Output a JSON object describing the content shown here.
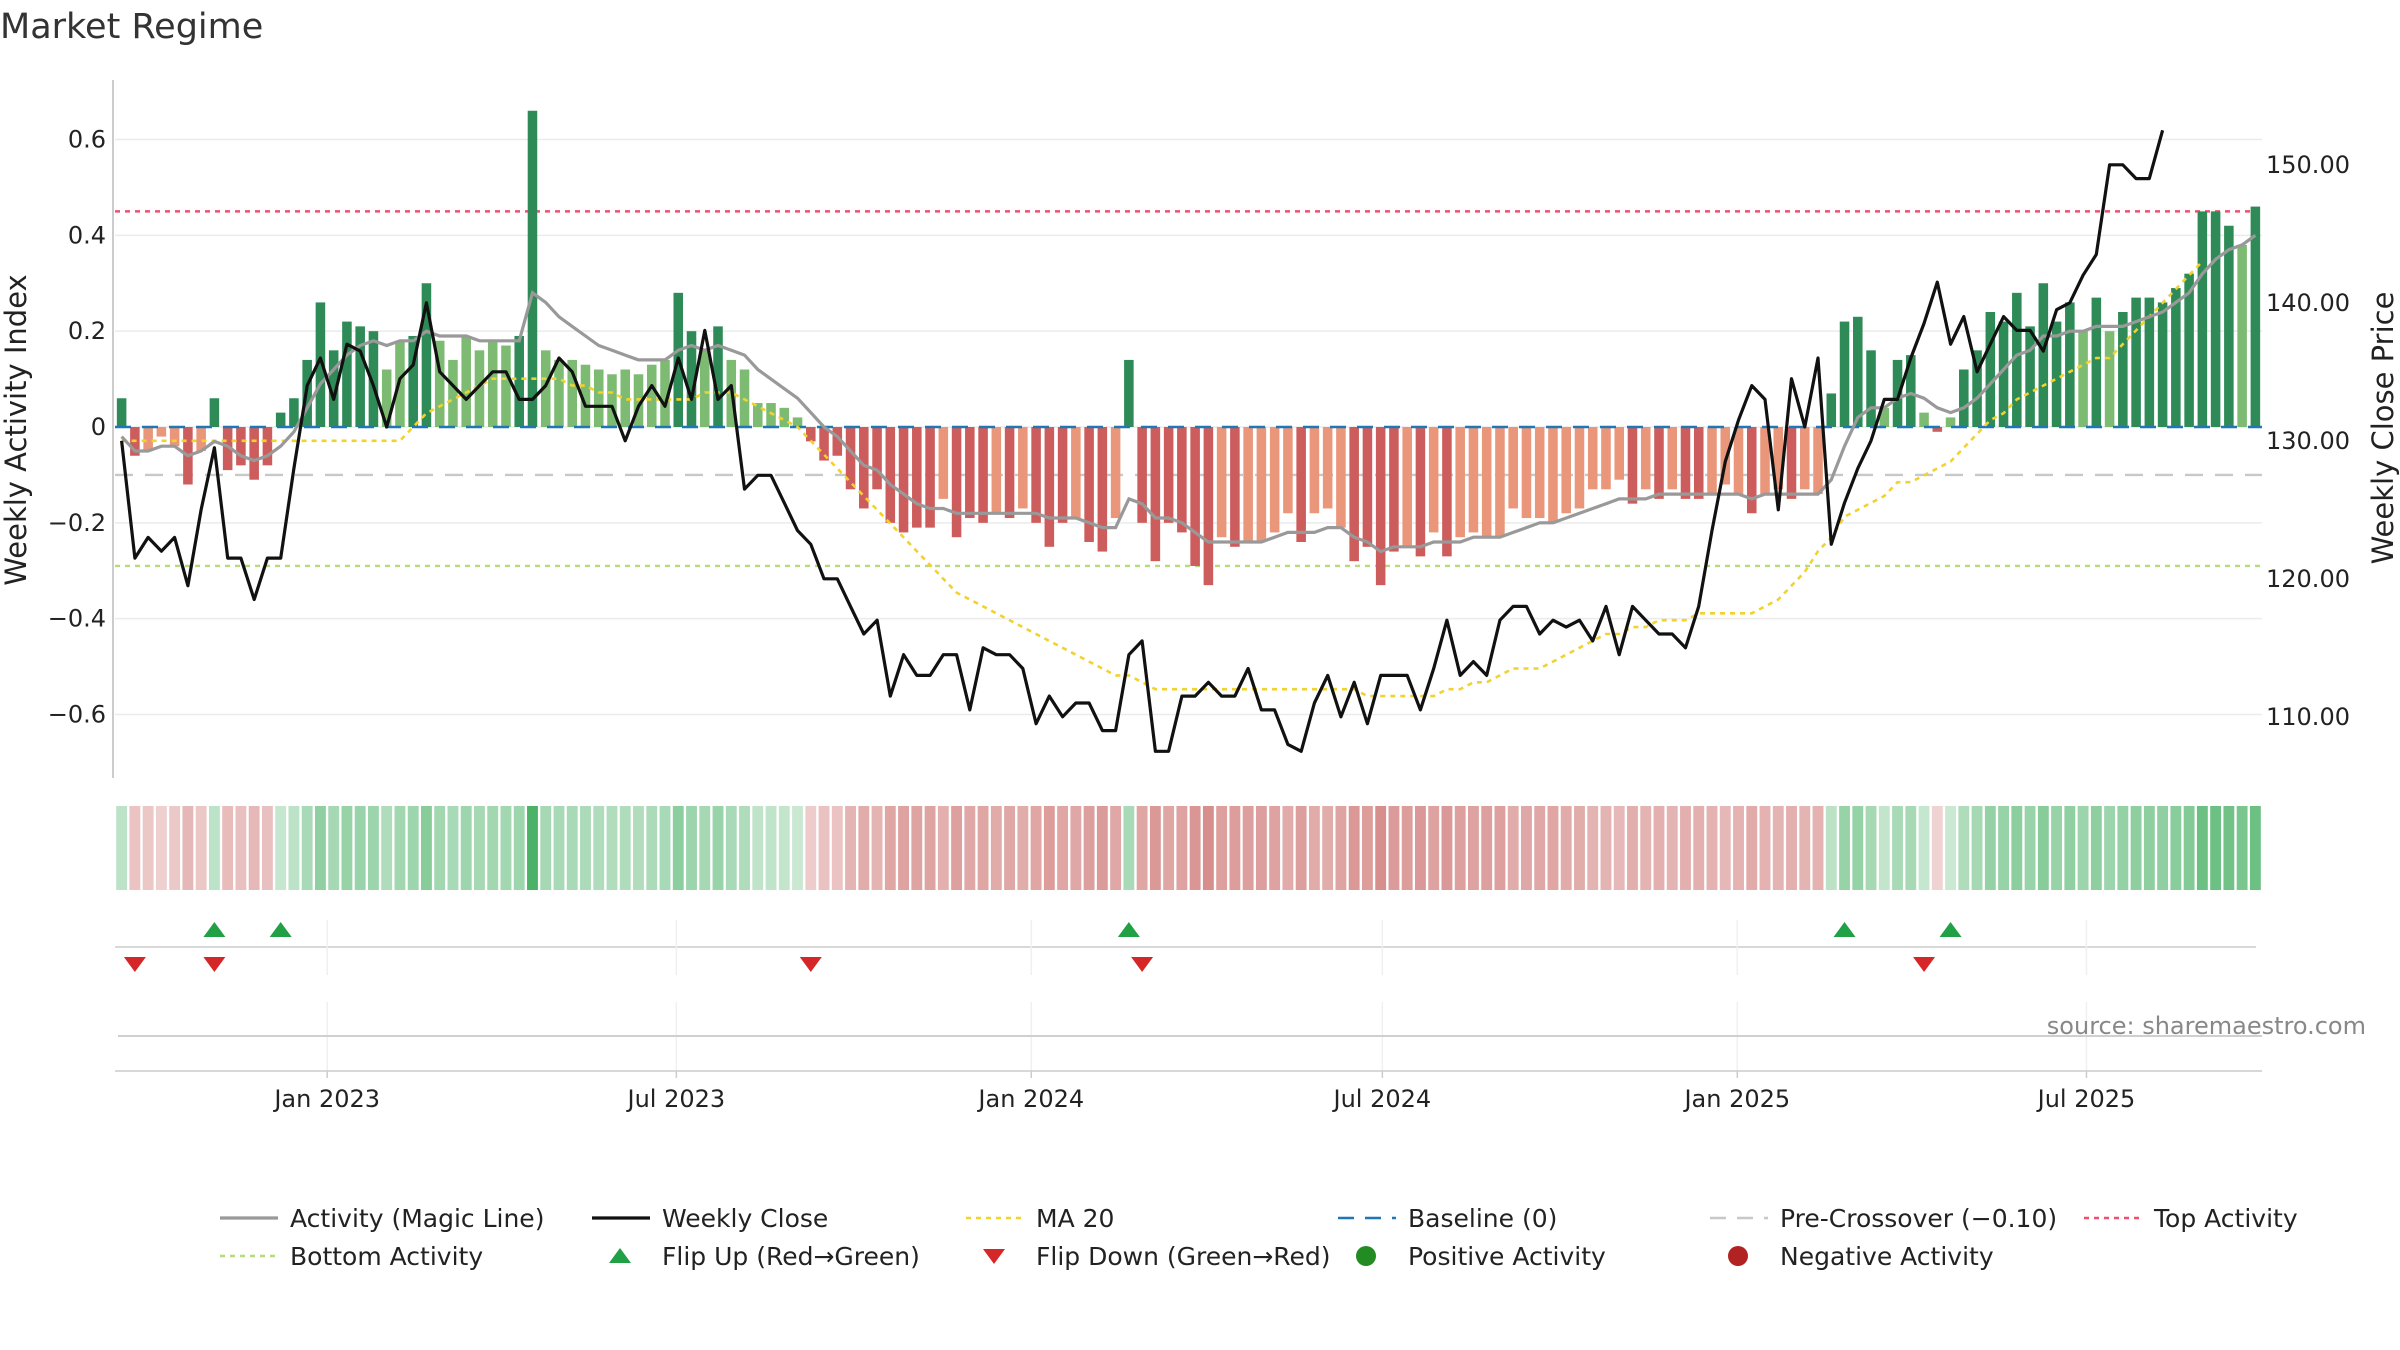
{
  "chart_data": {
    "type": "bar",
    "title": "Market Regime",
    "source": "source: sharemaestro.com",
    "y_left": {
      "label": "Weekly Activity Index",
      "ticks": [
        0.6,
        0.4,
        0.2,
        0,
        -0.2,
        -0.4,
        -0.6
      ],
      "tick_labels": [
        "0.6",
        "0.4",
        "0.2",
        "0",
        "−0.2",
        "−0.4",
        "−0.6"
      ],
      "range": [
        -0.72,
        0.72
      ]
    },
    "y_right": {
      "label": "Weekly Close Price",
      "ticks": [
        150,
        140,
        130,
        120,
        110
      ],
      "tick_labels": [
        "150.00",
        "140.00",
        "130.00",
        "120.00",
        "110.00"
      ],
      "range": [
        106,
        156
      ]
    },
    "x_axis": {
      "start_date": "2022-09-13",
      "end_date": "2025-09-30",
      "ticks": [
        {
          "date": "2023-01-01",
          "label": "Jan 2023"
        },
        {
          "date": "2023-07-01",
          "label": "Jul 2023"
        },
        {
          "date": "2024-01-01",
          "label": "Jan 2024"
        },
        {
          "date": "2024-07-01",
          "label": "Jul 2024"
        },
        {
          "date": "2025-01-01",
          "label": "Jan 2025"
        },
        {
          "date": "2025-07-01",
          "label": "Jul 2025"
        }
      ]
    },
    "thresholds": {
      "top": 0.45,
      "bottom": -0.29,
      "pre_crossover": -0.1,
      "baseline": 0
    },
    "activity": [
      0.06,
      -0.06,
      -0.05,
      -0.02,
      -0.04,
      -0.12,
      -0.05,
      0.06,
      -0.09,
      -0.08,
      -0.11,
      -0.08,
      0.03,
      0.06,
      0.14,
      0.26,
      0.16,
      0.22,
      0.21,
      0.2,
      0.12,
      0.18,
      0.19,
      0.3,
      0.18,
      0.14,
      0.19,
      0.16,
      0.18,
      0.17,
      0.19,
      0.66,
      0.16,
      0.14,
      0.14,
      0.13,
      0.12,
      0.11,
      0.12,
      0.11,
      0.13,
      0.14,
      0.28,
      0.2,
      0.16,
      0.21,
      0.14,
      0.12,
      0.05,
      0.05,
      0.04,
      0.02,
      -0.03,
      -0.07,
      -0.06,
      -0.13,
      -0.17,
      -0.13,
      -0.2,
      -0.22,
      -0.21,
      -0.21,
      -0.15,
      -0.23,
      -0.19,
      -0.2,
      -0.18,
      -0.19,
      -0.17,
      -0.2,
      -0.25,
      -0.2,
      -0.19,
      -0.24,
      -0.26,
      -0.19,
      0.14,
      -0.2,
      -0.28,
      -0.2,
      -0.22,
      -0.29,
      -0.33,
      -0.23,
      -0.25,
      -0.24,
      -0.24,
      -0.22,
      -0.18,
      -0.24,
      -0.18,
      -0.17,
      -0.21,
      -0.28,
      -0.25,
      -0.33,
      -0.26,
      -0.25,
      -0.27,
      -0.22,
      -0.27,
      -0.23,
      -0.22,
      -0.23,
      -0.23,
      -0.17,
      -0.19,
      -0.19,
      -0.2,
      -0.18,
      -0.17,
      -0.13,
      -0.13,
      -0.11,
      -0.16,
      -0.13,
      -0.15,
      -0.13,
      -0.15,
      -0.15,
      -0.14,
      -0.12,
      -0.14,
      -0.18,
      -0.14,
      -0.13,
      -0.15,
      -0.13,
      -0.14,
      0.07,
      0.22,
      0.23,
      0.16,
      0.04,
      0.14,
      0.15,
      0.03,
      -0.01,
      0.02,
      0.12,
      0.16,
      0.24,
      0.22,
      0.28,
      0.21,
      0.3,
      0.22,
      0.26,
      0.2,
      0.27,
      0.2,
      0.24,
      0.27,
      0.27,
      0.26,
      0.29,
      0.32,
      0.45,
      0.45,
      0.42,
      0.38,
      0.46
    ],
    "close": [
      130.0,
      121.5,
      123.0,
      122.0,
      123.0,
      119.5,
      125.0,
      129.5,
      121.5,
      121.5,
      118.5,
      121.5,
      121.5,
      128.0,
      134.0,
      136.0,
      133.0,
      137.0,
      136.5,
      134.0,
      131.0,
      134.5,
      135.5,
      140.0,
      135.0,
      134.0,
      133.0,
      134.0,
      135.0,
      135.0,
      133.0,
      133.0,
      134.0,
      136.0,
      135.0,
      132.5,
      132.5,
      132.5,
      130.0,
      132.5,
      134.0,
      132.5,
      136.0,
      133.0,
      138.0,
      133.0,
      134.0,
      126.5,
      127.5,
      127.5,
      125.5,
      123.5,
      122.5,
      120.0,
      120.0,
      118.0,
      116.0,
      117.0,
      111.5,
      114.5,
      113.0,
      113.0,
      114.5,
      114.5,
      110.5,
      115.0,
      114.5,
      114.5,
      113.5,
      109.5,
      111.5,
      110.0,
      111.0,
      111.0,
      109.0,
      109.0,
      114.5,
      115.5,
      107.5,
      107.5,
      111.5,
      111.5,
      112.5,
      111.5,
      111.5,
      113.5,
      110.5,
      110.5,
      108.0,
      107.5,
      111.0,
      113.0,
      110.0,
      112.5,
      109.5,
      113.0,
      113.0,
      113.0,
      110.5,
      113.5,
      117.0,
      113.0,
      114.0,
      113.0,
      117.0,
      118.0,
      118.0,
      116.0,
      117.0,
      116.5,
      117.0,
      115.5,
      118.0,
      114.5,
      118.0,
      117.0,
      116.0,
      116.0,
      115.0,
      118.0,
      123.5,
      128.5,
      131.5,
      134.0,
      133.0,
      125.0,
      134.5,
      131.0,
      136.0,
      122.5,
      125.5,
      128.0,
      130.0,
      133.0,
      133.0,
      136.0,
      138.5,
      141.5,
      137.0,
      139.0,
      135.0,
      137.0,
      139.0,
      138.0,
      138.0,
      136.5,
      139.5,
      140.0,
      142.0,
      143.5,
      150.0,
      150.0,
      149.0,
      149.0,
      152.5
    ],
    "magic_line": [
      -0.02,
      -0.05,
      -0.05,
      -0.04,
      -0.04,
      -0.06,
      -0.05,
      -0.03,
      -0.04,
      -0.06,
      -0.07,
      -0.06,
      -0.04,
      -0.01,
      0.04,
      0.09,
      0.12,
      0.15,
      0.17,
      0.18,
      0.17,
      0.18,
      0.18,
      0.2,
      0.19,
      0.19,
      0.19,
      0.18,
      0.18,
      0.18,
      0.18,
      0.28,
      0.26,
      0.23,
      0.21,
      0.19,
      0.17,
      0.16,
      0.15,
      0.14,
      0.14,
      0.14,
      0.16,
      0.17,
      0.16,
      0.17,
      0.16,
      0.15,
      0.12,
      0.1,
      0.08,
      0.06,
      0.03,
      0.0,
      -0.02,
      -0.05,
      -0.08,
      -0.09,
      -0.12,
      -0.14,
      -0.16,
      -0.17,
      -0.17,
      -0.18,
      -0.18,
      -0.18,
      -0.18,
      -0.18,
      -0.18,
      -0.18,
      -0.19,
      -0.19,
      -0.19,
      -0.2,
      -0.21,
      -0.21,
      -0.15,
      -0.16,
      -0.19,
      -0.19,
      -0.2,
      -0.22,
      -0.24,
      -0.24,
      -0.24,
      -0.24,
      -0.24,
      -0.23,
      -0.22,
      -0.22,
      -0.22,
      -0.21,
      -0.21,
      -0.23,
      -0.24,
      -0.26,
      -0.25,
      -0.25,
      -0.25,
      -0.24,
      -0.24,
      -0.24,
      -0.23,
      -0.23,
      -0.23,
      -0.22,
      -0.21,
      -0.2,
      -0.2,
      -0.19,
      -0.18,
      -0.17,
      -0.16,
      -0.15,
      -0.15,
      -0.15,
      -0.14,
      -0.14,
      -0.14,
      -0.14,
      -0.14,
      -0.14,
      -0.14,
      -0.15,
      -0.14,
      -0.14,
      -0.14,
      -0.14,
      -0.14,
      -0.11,
      -0.04,
      0.02,
      0.04,
      0.04,
      0.06,
      0.07,
      0.06,
      0.04,
      0.03,
      0.04,
      0.06,
      0.09,
      0.12,
      0.15,
      0.16,
      0.19,
      0.19,
      0.2,
      0.2,
      0.21,
      0.21,
      0.21,
      0.22,
      0.23,
      0.24,
      0.26,
      0.28,
      0.32,
      0.35,
      0.37,
      0.38,
      0.4
    ],
    "ma20": [
      130.0,
      130.0,
      130.0,
      130.0,
      130.0,
      130.0,
      130.0,
      130.0,
      130.0,
      130.0,
      130.0,
      130.0,
      130.0,
      130.0,
      130.0,
      130.0,
      130.0,
      130.0,
      130.0,
      130.0,
      130.0,
      130.0,
      131.0,
      132.0,
      132.5,
      133.0,
      133.5,
      134.0,
      134.5,
      134.5,
      134.5,
      134.5,
      134.5,
      134.5,
      134.0,
      134.0,
      133.5,
      133.5,
      133.0,
      133.0,
      133.0,
      133.0,
      133.0,
      133.0,
      133.5,
      133.5,
      133.5,
      133.0,
      132.5,
      132.0,
      131.5,
      131.0,
      130.0,
      129.0,
      128.0,
      127.0,
      126.0,
      125.0,
      124.0,
      123.0,
      122.0,
      121.0,
      120.0,
      119.0,
      118.5,
      118.0,
      117.5,
      117.0,
      116.5,
      116.0,
      115.5,
      115.0,
      114.5,
      114.0,
      113.5,
      113.0,
      113.0,
      112.5,
      112.0,
      112.0,
      112.0,
      112.0,
      112.0,
      112.0,
      112.0,
      112.0,
      112.0,
      112.0,
      112.0,
      112.0,
      112.0,
      112.0,
      112.0,
      112.0,
      111.5,
      111.5,
      111.5,
      111.5,
      111.5,
      111.5,
      112.0,
      112.0,
      112.5,
      112.5,
      113.0,
      113.5,
      113.5,
      113.5,
      114.0,
      114.5,
      115.0,
      115.5,
      116.0,
      116.0,
      116.5,
      116.5,
      117.0,
      117.0,
      117.0,
      117.5,
      117.5,
      117.5,
      117.5,
      117.5,
      118.0,
      118.5,
      119.5,
      120.5,
      122.0,
      123.0,
      124.5,
      125.0,
      125.5,
      126.0,
      127.0,
      127.0,
      127.5,
      128.0,
      128.5,
      129.5,
      130.5,
      131.5,
      132.0,
      133.0,
      133.5,
      134.0,
      134.5,
      135.0,
      135.5,
      136.0,
      136.0,
      137.0,
      138.0,
      139.0,
      140.0,
      141.0,
      142.0,
      143.0
    ],
    "flip_up_idx": [
      7,
      12,
      76,
      130,
      138
    ],
    "flip_down_idx": [
      1,
      7,
      52,
      77,
      136
    ],
    "legend": [
      {
        "label": "Activity (Magic Line)",
        "style": "solid-gray"
      },
      {
        "label": "Weekly Close",
        "style": "solid-black"
      },
      {
        "label": "MA 20",
        "style": "dotted-yellow"
      },
      {
        "label": "Baseline (0)",
        "style": "dashed-blue"
      },
      {
        "label": "Pre-Crossover (−0.10)",
        "style": "dashed-lightgray"
      },
      {
        "label": "Top Activity",
        "style": "dotted-red"
      },
      {
        "label": "Bottom Activity",
        "style": "dotted-green"
      },
      {
        "label": "Flip Up (Red→Green)",
        "style": "triangle-up"
      },
      {
        "label": "Flip Down (Green→Red)",
        "style": "triangle-down"
      },
      {
        "label": "Positive Activity",
        "style": "dot-green"
      },
      {
        "label": "Negative Activity",
        "style": "dot-red"
      }
    ],
    "colors": {
      "pos_strong": "#2e8b57",
      "pos_light": "#7dbb73",
      "neg_strong": "#cd5c5c",
      "neg_light": "#e9967a",
      "magic": "#999999",
      "close": "#111111",
      "ma20": "#f2d22e",
      "baseline": "#1f77b4",
      "pre": "#c8c8c8",
      "top": "#f0506e",
      "bottom": "#b5dc78",
      "flip_up": "#22a046",
      "flip_down": "#d62728",
      "pos_dot": "#228b22",
      "neg_dot": "#b22222"
    }
  }
}
